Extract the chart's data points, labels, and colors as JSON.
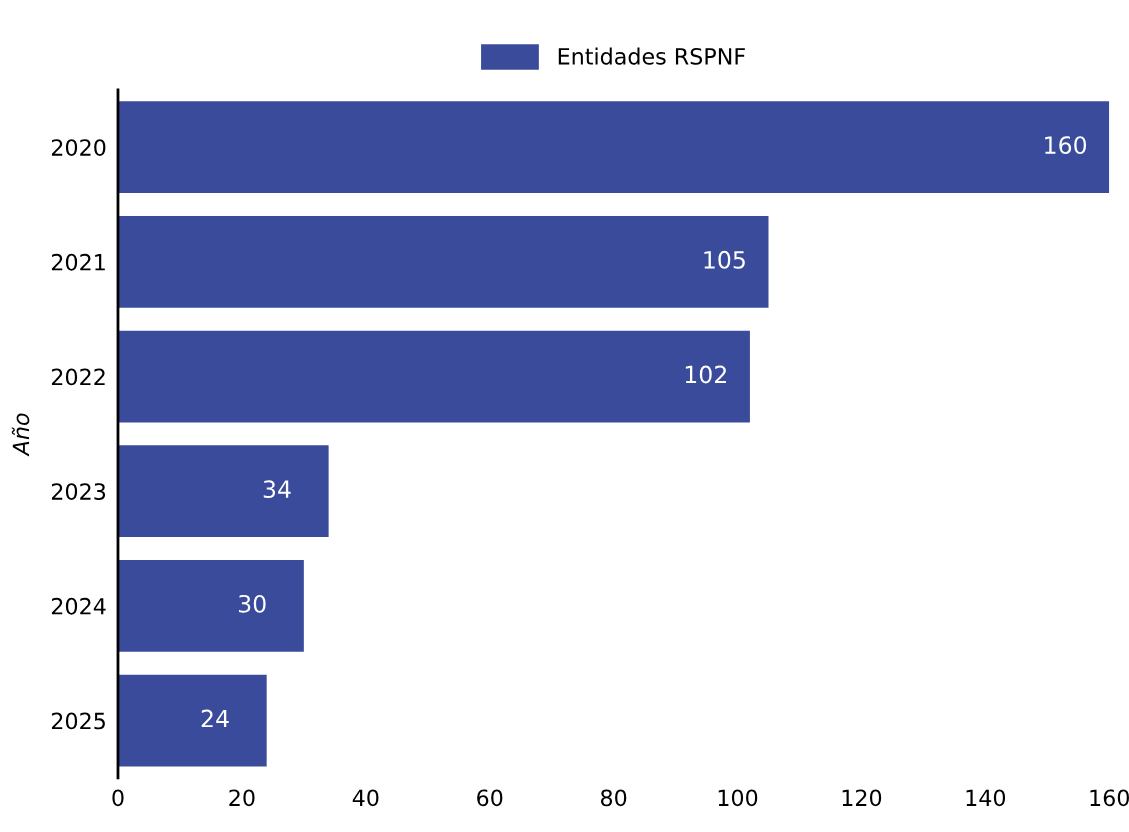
{
  "chart_data": {
    "type": "bar",
    "orientation": "horizontal",
    "ylabel": "Año",
    "categories": [
      "2020",
      "2021",
      "2022",
      "2023",
      "2024",
      "2025"
    ],
    "series": [
      {
        "name": "Entidades RSPNF",
        "color": "#394b9a",
        "values": [
          160,
          105,
          102,
          34,
          30,
          24
        ]
      }
    ],
    "xlim": [
      0,
      160
    ],
    "xticks": [
      0,
      20,
      40,
      60,
      80,
      100,
      120,
      140,
      160
    ],
    "data_labels": true,
    "legend": "top",
    "grid": false
  }
}
